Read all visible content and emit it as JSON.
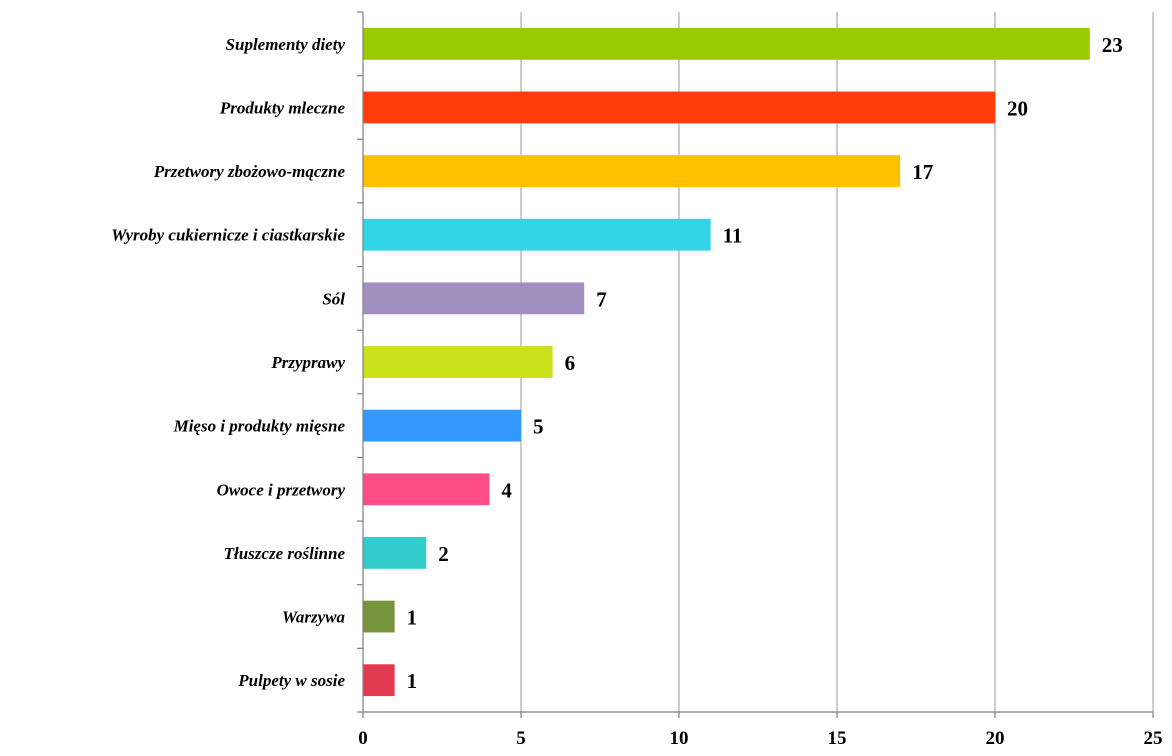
{
  "chart_data": {
    "type": "bar",
    "orientation": "horizontal",
    "categories": [
      "Suplementy diety",
      "Produkty mleczne",
      "Przetwory zbożowo-mączne",
      "Wyroby cukiernicze i ciastkarskie",
      "Sól",
      "Przyprawy",
      "Mięso i produkty mięsne",
      "Owoce i przetwory",
      "Tłuszcze roślinne",
      "Warzywa",
      "Pulpety w sosie"
    ],
    "values": [
      23,
      20,
      17,
      11,
      7,
      6,
      5,
      4,
      2,
      1,
      1
    ],
    "colors": [
      "#99cc00",
      "#ff3c0a",
      "#ffc000",
      "#33d6e8",
      "#a18fbf",
      "#c9e01a",
      "#3399ff",
      "#ff4d88",
      "#33cccc",
      "#77933c",
      "#e23a50"
    ],
    "xlim": [
      0,
      25
    ],
    "xticks": [
      0,
      5,
      10,
      15,
      20,
      25
    ],
    "grid": true,
    "data_labels": true,
    "title": "",
    "xlabel": "",
    "ylabel": ""
  }
}
